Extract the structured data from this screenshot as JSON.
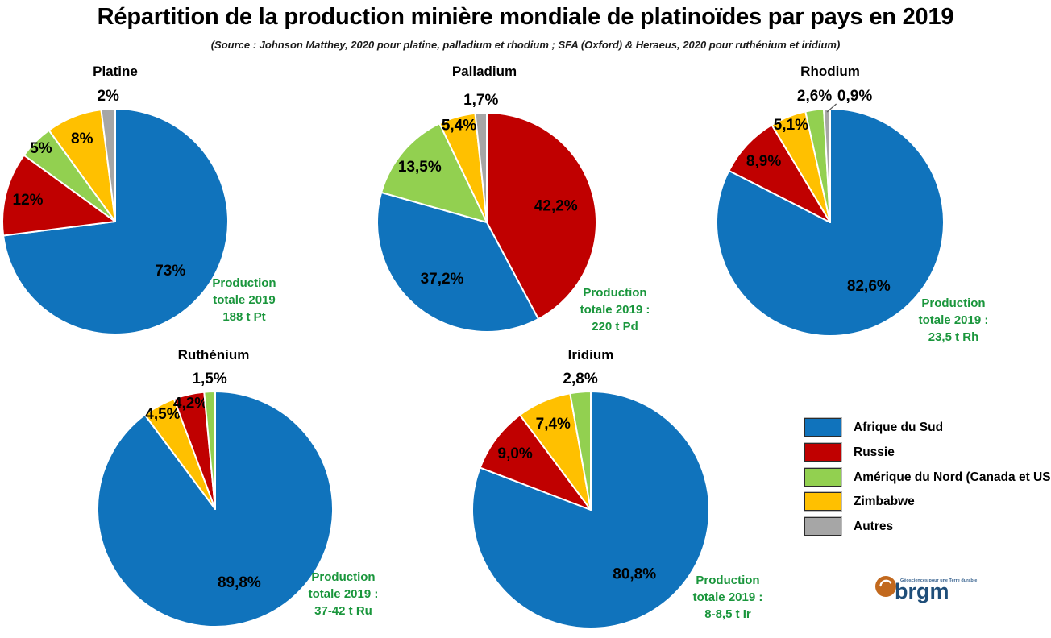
{
  "title": "Répartition de la production minière mondiale de platinoïdes par pays en 2019",
  "subtitle": "(Source : Johnson Matthey, 2020 pour platine, palladium et rhodium ; SFA (Oxford) & Heraeus, 2020 pour ruthénium et iridium)",
  "colors": {
    "afrique_du_sud": "#1073BC",
    "russie": "#C00000",
    "amerique_du_nord": "#92D050",
    "zimbabwe": "#FFC000",
    "autres": "#A6A6A6",
    "note_green": "#1A963C"
  },
  "legend": {
    "position": "right-bottom",
    "items": [
      {
        "label": "Afrique du Sud",
        "color_key": "afrique_du_sud"
      },
      {
        "label": "Russie",
        "color_key": "russie"
      },
      {
        "label": "Amérique du Nord (Canada et USA)",
        "color_key": "amerique_du_nord"
      },
      {
        "label": "Zimbabwe",
        "color_key": "zimbabwe"
      },
      {
        "label": "Autres",
        "color_key": "autres"
      }
    ]
  },
  "logo": {
    "text": "brgm",
    "tagline": "Géosciences pour une Terre durable"
  },
  "chart_data": [
    {
      "id": "platine",
      "type": "pie",
      "title": "Platine",
      "start_angle": "12-oclock",
      "direction": "clockwise",
      "note": [
        "Production",
        "totale 2019",
        "188 t Pt"
      ],
      "slices": [
        {
          "country": "Afrique du Sud",
          "color_key": "afrique_du_sud",
          "value": 73,
          "label": "73%"
        },
        {
          "country": "Russie",
          "color_key": "russie",
          "value": 12,
          "label": "12%"
        },
        {
          "country": "Amérique du Nord (Canada et USA)",
          "color_key": "amerique_du_nord",
          "value": 5,
          "label": "5%"
        },
        {
          "country": "Zimbabwe",
          "color_key": "zimbabwe",
          "value": 8,
          "label": "8%"
        },
        {
          "country": "Autres",
          "color_key": "autres",
          "value": 2,
          "label": "2%"
        }
      ]
    },
    {
      "id": "palladium",
      "type": "pie",
      "title": "Palladium",
      "start_angle": "12-oclock",
      "direction": "clockwise",
      "note": [
        "Production",
        "totale 2019 :",
        "220 t Pd"
      ],
      "slices": [
        {
          "country": "Russie",
          "color_key": "russie",
          "value": 42.2,
          "label": "42,2%"
        },
        {
          "country": "Afrique du Sud",
          "color_key": "afrique_du_sud",
          "value": 37.2,
          "label": "37,2%"
        },
        {
          "country": "Amérique du Nord (Canada et USA)",
          "color_key": "amerique_du_nord",
          "value": 13.5,
          "label": "13,5%"
        },
        {
          "country": "Zimbabwe",
          "color_key": "zimbabwe",
          "value": 5.4,
          "label": "5,4%"
        },
        {
          "country": "Autres",
          "color_key": "autres",
          "value": 1.7,
          "label": "1,7%"
        }
      ]
    },
    {
      "id": "rhodium",
      "type": "pie",
      "title": "Rhodium",
      "start_angle": "12-oclock",
      "direction": "clockwise",
      "note": [
        "Production",
        "totale 2019 :",
        "23,5 t Rh"
      ],
      "slices": [
        {
          "country": "Afrique du Sud",
          "color_key": "afrique_du_sud",
          "value": 82.6,
          "label": "82,6%"
        },
        {
          "country": "Russie",
          "color_key": "russie",
          "value": 8.9,
          "label": "8,9%"
        },
        {
          "country": "Zimbabwe",
          "color_key": "zimbabwe",
          "value": 5.1,
          "label": "5,1%"
        },
        {
          "country": "Amérique du Nord (Canada et USA)",
          "color_key": "amerique_du_nord",
          "value": 2.6,
          "label": "2,6%"
        },
        {
          "country": "Autres",
          "color_key": "autres",
          "value": 0.9,
          "label": "0,9%"
        }
      ]
    },
    {
      "id": "ruthenium",
      "type": "pie",
      "title": "Ruthénium",
      "start_angle": "12-oclock",
      "direction": "clockwise",
      "note": [
        "Production",
        "totale 2019 :",
        "37-42 t Ru"
      ],
      "slices": [
        {
          "country": "Afrique du Sud",
          "color_key": "afrique_du_sud",
          "value": 89.8,
          "label": "89,8%"
        },
        {
          "country": "Zimbabwe",
          "color_key": "zimbabwe",
          "value": 4.5,
          "label": "4,5%"
        },
        {
          "country": "Russie",
          "color_key": "russie",
          "value": 4.2,
          "label": "4,2%"
        },
        {
          "country": "Amérique du Nord (Canada et USA)",
          "color_key": "amerique_du_nord",
          "value": 1.5,
          "label": "1,5%"
        }
      ]
    },
    {
      "id": "iridium",
      "type": "pie",
      "title": "Iridium",
      "start_angle": "12-oclock",
      "direction": "clockwise",
      "note": [
        "Production",
        "totale 2019 :",
        "8-8,5 t Ir"
      ],
      "slices": [
        {
          "country": "Afrique du Sud",
          "color_key": "afrique_du_sud",
          "value": 80.8,
          "label": "80,8%"
        },
        {
          "country": "Russie",
          "color_key": "russie",
          "value": 9.0,
          "label": "9,0%"
        },
        {
          "country": "Zimbabwe",
          "color_key": "zimbabwe",
          "value": 7.4,
          "label": "7,4%"
        },
        {
          "country": "Amérique du Nord (Canada et USA)",
          "color_key": "amerique_du_nord",
          "value": 2.8,
          "label": "2,8%"
        }
      ]
    }
  ]
}
